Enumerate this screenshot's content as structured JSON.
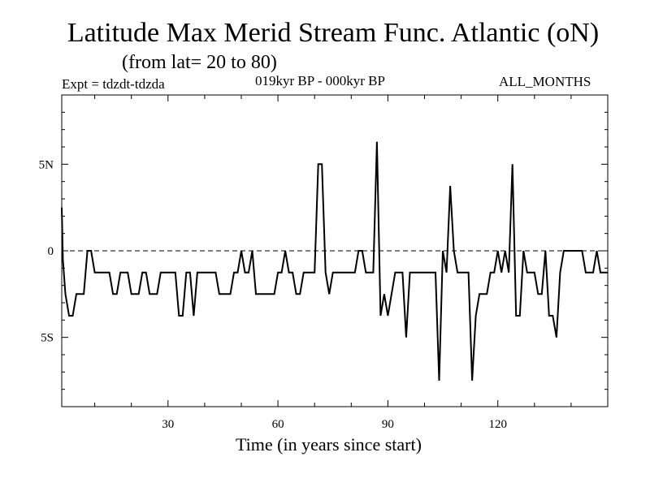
{
  "chart_data": {
    "type": "line",
    "title": "Latitude Max Merid Stream Func. Atlantic (oN)",
    "subtitle": "(from lat= 20 to 80)",
    "experiment": "Expt = tdzdt-tdzda",
    "period": "019kyr BP - 000kyr BP",
    "months": "ALL_MONTHS",
    "xlabel": "Time (in years since start)",
    "ylabel": "",
    "xlim": [
      1,
      150
    ],
    "ylim": [
      -9,
      9
    ],
    "x_ticks": [
      30,
      60,
      90,
      120
    ],
    "x_tick_labels": [
      "30",
      "60",
      "90",
      "120"
    ],
    "y_ticks": [
      5,
      0,
      -5
    ],
    "y_tick_labels": [
      "5N",
      "0",
      "5S"
    ],
    "reference_line": 0,
    "series": [
      {
        "name": "Latitude Max",
        "x": [
          1,
          1.3,
          2,
          3,
          4,
          5,
          6,
          7,
          8,
          9,
          10,
          11,
          12,
          13,
          14,
          15,
          16,
          17,
          18,
          19,
          20,
          21,
          22,
          23,
          24,
          25,
          26,
          27,
          28,
          29,
          30,
          31,
          32,
          33,
          34,
          35,
          36,
          37,
          38,
          39,
          40,
          41,
          42,
          43,
          44,
          45,
          46,
          47,
          48,
          49,
          50,
          51,
          52,
          53,
          54,
          55,
          56,
          57,
          58,
          59,
          60,
          61,
          62,
          63,
          64,
          65,
          66,
          67,
          68,
          69,
          70,
          71,
          72,
          73,
          74,
          75,
          76,
          77,
          78,
          79,
          80,
          81,
          82,
          83,
          84,
          85,
          86,
          87,
          88,
          89,
          90,
          91,
          92,
          93,
          94,
          95,
          96,
          97,
          98,
          99,
          100,
          101,
          102,
          103,
          104,
          105,
          106,
          107,
          108,
          109,
          110,
          111,
          112,
          113,
          114,
          115,
          116,
          117,
          118,
          119,
          120,
          121,
          122,
          123,
          124,
          125,
          126,
          127,
          128,
          129,
          130,
          131,
          132,
          133,
          134,
          135,
          136,
          137,
          138,
          139,
          140,
          141,
          142,
          143,
          144,
          145,
          146,
          147,
          148,
          149,
          150
        ],
        "y": [
          2.5,
          -0.5,
          -2.5,
          -3.75,
          -3.75,
          -2.5,
          -2.5,
          -2.5,
          0,
          0,
          -1.25,
          -1.25,
          -1.25,
          -1.25,
          -1.25,
          -2.5,
          -2.5,
          -1.25,
          -1.25,
          -1.25,
          -2.5,
          -2.5,
          -2.5,
          -1.25,
          -1.25,
          -2.5,
          -2.5,
          -2.5,
          -1.25,
          -1.25,
          -1.25,
          -1.25,
          -1.25,
          -3.75,
          -3.75,
          -1.25,
          -1.25,
          -3.75,
          -1.25,
          -1.25,
          -1.25,
          -1.25,
          -1.25,
          -1.25,
          -2.5,
          -2.5,
          -2.5,
          -2.5,
          -1.25,
          -1.25,
          0,
          -1.25,
          -1.25,
          0,
          -2.5,
          -2.5,
          -2.5,
          -2.5,
          -2.5,
          -2.5,
          -1.25,
          -1.25,
          0,
          -1.25,
          -1.25,
          -2.5,
          -2.5,
          -1.25,
          -1.25,
          -1.25,
          -1.25,
          5,
          5,
          -1.25,
          -2.5,
          -1.25,
          -1.25,
          -1.25,
          -1.25,
          -1.25,
          -1.25,
          -1.25,
          0,
          0,
          -1.25,
          -1.25,
          -1.25,
          6.3,
          -3.75,
          -2.5,
          -3.75,
          -2.5,
          -1.25,
          -1.25,
          -1.25,
          -5,
          -1.25,
          -1.25,
          -1.25,
          -1.25,
          -1.25,
          -1.25,
          -1.25,
          -1.25,
          -7.5,
          0,
          -1.25,
          3.75,
          0,
          -1.25,
          -1.25,
          -1.25,
          -1.25,
          -7.5,
          -3.75,
          -2.5,
          -2.5,
          -2.5,
          -1.25,
          -1.25,
          0,
          -1.25,
          0,
          -1.25,
          5,
          -3.75,
          -3.75,
          0,
          -1.25,
          -1.25,
          -1.25,
          -2.5,
          -2.5,
          0,
          -3.75,
          -3.75,
          -5,
          -1.25,
          0,
          0,
          0,
          0,
          0,
          0,
          -1.25,
          -1.25,
          -1.25,
          0,
          -1.25,
          -1.25,
          -1.25
        ]
      }
    ]
  }
}
